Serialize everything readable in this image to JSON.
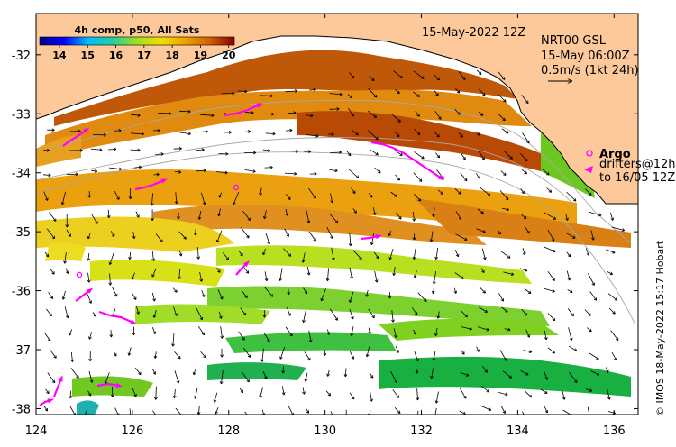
{
  "map": {
    "x_range": [
      124,
      136.5
    ],
    "y_range": [
      -38.1,
      -31.3
    ],
    "x_ticks": [
      "124",
      "126",
      "128",
      "130",
      "132",
      "134",
      "136"
    ],
    "y_ticks": [
      "-32",
      "-33",
      "-34",
      "-35",
      "-36",
      "-37",
      "-38"
    ],
    "land_color": "#fdc89a",
    "ocean_gap_color": "#ffffff"
  },
  "colorbar": {
    "title": "4h comp, p50, All Sats",
    "ticks": [
      "14",
      "15",
      "16",
      "17",
      "18",
      "19",
      "20"
    ],
    "min": 13.3,
    "max": 20.2,
    "stops": [
      "#00008b",
      "#0000ff",
      "#00bfff",
      "#20d0a0",
      "#a0e020",
      "#f0e000",
      "#f0a000",
      "#d06000",
      "#8b0000"
    ]
  },
  "header": {
    "date": "15-May-2022 12Z",
    "product": "NRT00 GSL",
    "product_time": "15-May 06:00Z",
    "scale_label": "0.5m/s (1kt 24h)"
  },
  "legend": {
    "argo_label": "Argo",
    "drifters_line1": "drifters@12h",
    "drifters_line2": "to 16/05 12Z",
    "marker_color": "#ff00ff"
  },
  "credit": "© IMOS 18-May-2022 15:17 Hobart"
}
